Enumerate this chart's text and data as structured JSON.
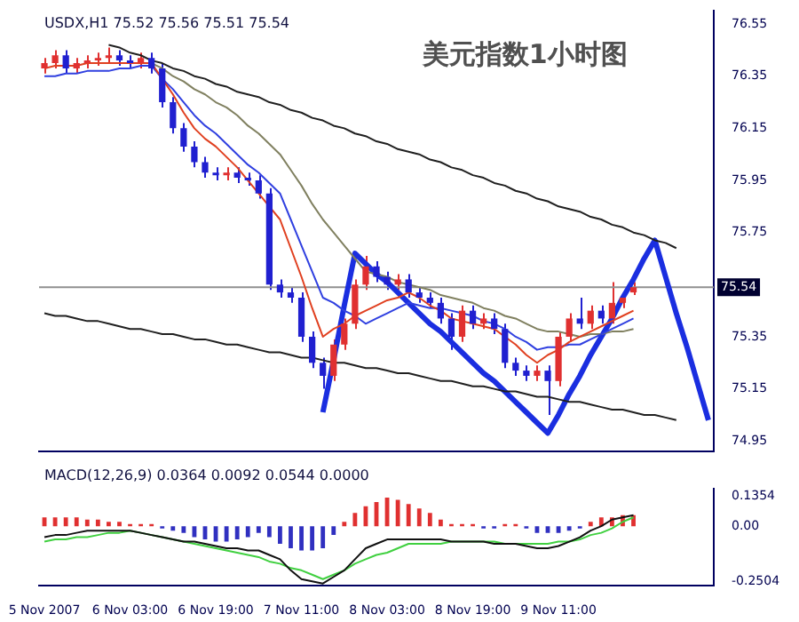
{
  "chart_data": [
    {
      "type": "candlestick",
      "title": "美元指数1小时图",
      "annotations": [
        "USDX,H1 75.52 75.56 75.51 75.54"
      ],
      "categories": [
        null,
        null,
        null,
        null,
        null,
        null,
        null,
        null,
        null,
        null,
        null,
        null,
        null,
        null,
        null,
        null,
        null,
        null,
        null,
        null,
        null,
        null,
        null,
        null,
        null,
        null,
        null,
        null,
        null,
        null,
        null,
        null,
        null,
        null,
        null,
        null,
        null,
        null,
        null,
        null,
        null,
        null,
        null,
        null,
        null,
        null,
        null,
        null,
        null,
        null,
        null,
        null,
        null,
        null,
        null,
        null,
        null,
        null,
        null,
        null,
        null,
        null,
        null
      ],
      "ohlc": [
        [
          76.38,
          76.42,
          76.36,
          76.4
        ],
        [
          76.4,
          76.45,
          76.38,
          76.43
        ],
        [
          76.43,
          76.45,
          76.36,
          76.38
        ],
        [
          76.38,
          76.42,
          76.36,
          76.4
        ],
        [
          76.4,
          76.43,
          76.38,
          76.41
        ],
        [
          76.41,
          76.44,
          76.39,
          76.42
        ],
        [
          76.42,
          76.46,
          76.4,
          76.43
        ],
        [
          76.43,
          76.45,
          76.39,
          76.41
        ],
        [
          76.41,
          76.43,
          76.38,
          76.4
        ],
        [
          76.4,
          76.44,
          76.38,
          76.42
        ],
        [
          76.42,
          76.44,
          76.36,
          76.38
        ],
        [
          76.38,
          76.4,
          76.23,
          76.25
        ],
        [
          76.25,
          76.27,
          76.13,
          76.15
        ],
        [
          76.15,
          76.17,
          76.06,
          76.08
        ],
        [
          76.08,
          76.1,
          76.0,
          76.02
        ],
        [
          76.02,
          76.04,
          75.96,
          75.98
        ],
        [
          75.98,
          76.0,
          75.95,
          75.97
        ],
        [
          75.97,
          76.0,
          75.95,
          75.98
        ],
        [
          75.98,
          76.0,
          75.94,
          75.96
        ],
        [
          75.96,
          75.98,
          75.93,
          75.95
        ],
        [
          75.95,
          75.97,
          75.88,
          75.9
        ],
        [
          75.9,
          75.92,
          75.53,
          75.55
        ],
        [
          75.55,
          75.57,
          75.5,
          75.52
        ],
        [
          75.52,
          75.54,
          75.48,
          75.5
        ],
        [
          75.5,
          75.52,
          75.33,
          75.35
        ],
        [
          75.35,
          75.37,
          75.23,
          75.25
        ],
        [
          75.25,
          75.27,
          75.15,
          75.2
        ],
        [
          75.2,
          75.34,
          75.18,
          75.32
        ],
        [
          75.32,
          75.42,
          75.3,
          75.4
        ],
        [
          75.4,
          75.57,
          75.38,
          75.55
        ],
        [
          75.55,
          75.66,
          75.53,
          75.62
        ],
        [
          75.62,
          75.64,
          75.56,
          75.58
        ],
        [
          75.58,
          75.6,
          75.53,
          75.55
        ],
        [
          75.55,
          75.59,
          75.53,
          75.57
        ],
        [
          75.57,
          75.59,
          75.5,
          75.52
        ],
        [
          75.52,
          75.54,
          75.48,
          75.5
        ],
        [
          75.5,
          75.52,
          75.46,
          75.48
        ],
        [
          75.48,
          75.5,
          75.4,
          75.42
        ],
        [
          75.42,
          75.44,
          75.3,
          75.35
        ],
        [
          75.35,
          75.47,
          75.33,
          75.45
        ],
        [
          75.45,
          75.47,
          75.38,
          75.4
        ],
        [
          75.4,
          75.44,
          75.38,
          75.42
        ],
        [
          75.42,
          75.44,
          75.36,
          75.38
        ],
        [
          75.38,
          75.4,
          75.23,
          75.25
        ],
        [
          75.25,
          75.27,
          75.2,
          75.22
        ],
        [
          75.22,
          75.24,
          75.18,
          75.2
        ],
        [
          75.2,
          75.24,
          75.18,
          75.22
        ],
        [
          75.22,
          75.24,
          75.05,
          75.18
        ],
        [
          75.18,
          75.37,
          75.16,
          75.35
        ],
        [
          75.35,
          75.44,
          75.33,
          75.42
        ],
        [
          75.42,
          75.5,
          75.38,
          75.4
        ],
        [
          75.4,
          75.47,
          75.38,
          75.45
        ],
        [
          75.45,
          75.47,
          75.4,
          75.42
        ],
        [
          75.42,
          75.56,
          75.4,
          75.48
        ],
        [
          75.48,
          75.52,
          75.46,
          75.5
        ],
        [
          75.52,
          75.56,
          75.51,
          75.54
        ],
        null,
        null,
        null,
        null,
        null,
        null,
        null
      ],
      "colors": [
        "#e03030",
        "#e03030",
        "#2020d0",
        "#e03030",
        "#e03030",
        "#e03030",
        "#e03030",
        "#2020d0",
        "#2020d0",
        "#e03030",
        "#2020d0",
        "#2020d0",
        "#2020d0",
        "#2020d0",
        "#2020d0",
        "#2020d0",
        "#2020d0",
        "#e03030",
        "#2020d0",
        "#2020d0",
        "#2020d0",
        "#2020d0",
        "#2020d0",
        "#2020d0",
        "#2020d0",
        "#2020d0",
        "#2020d0",
        "#e03030",
        "#e03030",
        "#e03030",
        "#e03030",
        "#2020d0",
        "#2020d0",
        "#e03030",
        "#2020d0",
        "#2020d0",
        "#2020d0",
        "#2020d0",
        "#2020d0",
        "#e03030",
        "#2020d0",
        "#e03030",
        "#2020d0",
        "#2020d0",
        "#2020d0",
        "#2020d0",
        "#e03030",
        "#2020d0",
        "#e03030",
        "#e03030",
        "#2020d0",
        "#e03030",
        "#2020d0",
        "#e03030",
        "#e03030",
        "#e03030",
        null,
        null,
        null,
        null,
        null,
        null,
        null
      ],
      "series": [
        {
          "type": "line",
          "color": "#e04020",
          "values": [
            76.38,
            76.39,
            76.39,
            76.39,
            76.4,
            76.4,
            76.4,
            76.4,
            76.4,
            76.4,
            76.4,
            76.34,
            76.28,
            76.21,
            76.15,
            76.11,
            76.08,
            76.04,
            76.0,
            75.95,
            75.9,
            75.85,
            75.8,
            75.69,
            75.58,
            75.46,
            75.35,
            75.38,
            75.4,
            75.43,
            75.45,
            75.47,
            75.49,
            75.5,
            75.52,
            75.5,
            75.47,
            75.45,
            75.42,
            75.41,
            75.4,
            75.39,
            75.38,
            75.35,
            75.32,
            75.28,
            75.25,
            75.28,
            75.3,
            75.33,
            75.35,
            75.37,
            75.39,
            75.41,
            75.43,
            75.45,
            null,
            null,
            null,
            null,
            null,
            null,
            null
          ]
        },
        {
          "type": "line",
          "color": "#3040e0",
          "values": [
            76.35,
            76.35,
            76.36,
            76.36,
            76.37,
            76.37,
            76.37,
            76.38,
            76.38,
            76.39,
            76.39,
            76.34,
            76.3,
            76.25,
            76.2,
            76.16,
            76.13,
            76.09,
            76.05,
            76.01,
            75.98,
            75.94,
            75.9,
            75.8,
            75.7,
            75.6,
            75.5,
            75.48,
            75.45,
            75.43,
            75.4,
            75.42,
            75.44,
            75.46,
            75.48,
            75.47,
            75.46,
            75.46,
            75.45,
            75.44,
            75.43,
            75.41,
            75.4,
            75.38,
            75.35,
            75.33,
            75.3,
            75.31,
            75.31,
            75.32,
            75.32,
            75.34,
            75.36,
            75.38,
            75.4,
            75.42,
            null,
            null,
            null,
            null,
            null,
            null,
            null
          ]
        },
        {
          "type": "line",
          "color": "#808060",
          "values": [
            null,
            null,
            null,
            null,
            null,
            null,
            null,
            null,
            null,
            null,
            76.4,
            76.38,
            76.35,
            76.33,
            76.3,
            76.28,
            76.25,
            76.23,
            76.2,
            76.16,
            76.13,
            76.09,
            76.05,
            75.99,
            75.93,
            75.86,
            75.8,
            75.75,
            75.7,
            75.65,
            75.6,
            75.59,
            75.58,
            75.56,
            75.55,
            75.54,
            75.53,
            75.51,
            75.5,
            75.49,
            75.48,
            75.46,
            75.45,
            75.43,
            75.42,
            75.4,
            75.38,
            75.37,
            75.37,
            75.36,
            75.35,
            75.36,
            75.36,
            75.37,
            75.37,
            75.38,
            null,
            null,
            null,
            null,
            null,
            null,
            null
          ]
        },
        {
          "type": "line",
          "color": "#202020",
          "values": [
            null,
            null,
            null,
            null,
            null,
            null,
            76.47,
            76.46,
            76.44,
            76.43,
            76.41,
            76.4,
            76.38,
            76.37,
            76.35,
            76.34,
            76.32,
            76.31,
            76.29,
            76.28,
            76.27,
            76.25,
            76.24,
            76.22,
            76.21,
            76.19,
            76.18,
            76.16,
            76.15,
            76.13,
            76.12,
            76.1,
            76.09,
            76.07,
            76.06,
            76.05,
            76.03,
            76.02,
            76.0,
            75.99,
            75.97,
            75.96,
            75.94,
            75.93,
            75.91,
            75.9,
            75.88,
            75.87,
            75.85,
            75.84,
            75.83,
            75.81,
            75.8,
            75.78,
            75.77,
            75.75,
            75.74,
            75.72,
            75.71,
            75.69,
            null,
            null,
            null
          ]
        },
        {
          "type": "line",
          "color": "#202020",
          "values": [
            75.44,
            75.43,
            75.43,
            75.42,
            75.41,
            75.41,
            75.4,
            75.39,
            75.38,
            75.38,
            75.37,
            75.36,
            75.36,
            75.35,
            75.34,
            75.34,
            75.33,
            75.32,
            75.32,
            75.31,
            75.3,
            75.29,
            75.29,
            75.28,
            75.27,
            75.27,
            75.26,
            75.25,
            75.25,
            75.24,
            75.23,
            75.23,
            75.22,
            75.21,
            75.21,
            75.2,
            75.19,
            75.18,
            75.18,
            75.17,
            75.16,
            75.16,
            75.15,
            75.14,
            75.14,
            75.13,
            75.12,
            75.12,
            75.11,
            75.1,
            75.1,
            75.09,
            75.08,
            75.07,
            75.07,
            75.06,
            75.05,
            75.05,
            75.04,
            75.03,
            null,
            null,
            null
          ]
        },
        {
          "type": "line",
          "color": "#1a2ee0",
          "values": [
            null,
            null,
            null,
            null,
            null,
            null,
            null,
            null,
            null,
            null,
            null,
            null,
            null,
            null,
            null,
            null,
            null,
            null,
            null,
            null,
            null,
            null,
            null,
            null,
            null,
            null,
            75.06,
            75.26,
            75.47,
            75.67,
            75.63,
            75.59,
            75.56,
            75.52,
            75.48,
            75.44,
            75.4,
            75.37,
            75.33,
            75.29,
            75.25,
            75.21,
            75.18,
            75.14,
            75.1,
            75.06,
            75.02,
            74.98,
            75.05,
            75.13,
            75.2,
            75.28,
            75.35,
            75.42,
            75.5,
            75.57,
            75.65,
            75.72,
            75.58,
            75.44,
            75.31,
            75.17,
            75.03
          ]
        }
      ],
      "ylim": [
        74.91,
        76.6
      ],
      "yticks": [
        76.55,
        76.35,
        76.15,
        75.95,
        75.75,
        75.35,
        75.15,
        74.95
      ],
      "tick_labels": "y",
      "ref_lines": [
        {
          "axis": "y",
          "value": 75.54,
          "label": "75.54",
          "color": "#909090"
        }
      ]
    },
    {
      "type": "bar",
      "annotations": [
        "MACD(12,26,9) 0.0364 0.0092 0.0544 0.0000"
      ],
      "categories": [
        "5 Nov 2007",
        null,
        null,
        null,
        null,
        null,
        null,
        null,
        "6 Nov 03:00",
        null,
        null,
        null,
        null,
        null,
        null,
        null,
        "6 Nov 19:00",
        null,
        null,
        null,
        null,
        null,
        null,
        null,
        "7 Nov 11:00",
        null,
        null,
        null,
        null,
        null,
        null,
        null,
        "8 Nov 03:00",
        null,
        null,
        null,
        null,
        null,
        null,
        null,
        "8 Nov 19:00",
        null,
        null,
        null,
        null,
        null,
        null,
        null,
        "9 Nov 11:00",
        null,
        null,
        null,
        null,
        null,
        null,
        null,
        null,
        null,
        null,
        null,
        null,
        null,
        null
      ],
      "values": [
        0.04,
        0.04,
        0.04,
        0.04,
        0.03,
        0.03,
        0.02,
        0.02,
        0.01,
        0.01,
        0.01,
        -0.01,
        -0.02,
        -0.03,
        -0.05,
        -0.06,
        -0.07,
        -0.07,
        -0.06,
        -0.05,
        -0.03,
        -0.05,
        -0.08,
        -0.1,
        -0.11,
        -0.11,
        -0.1,
        -0.04,
        0.02,
        0.06,
        0.09,
        0.11,
        0.13,
        0.12,
        0.1,
        0.08,
        0.06,
        0.03,
        0.01,
        0.01,
        0.01,
        -0.01,
        -0.01,
        0.01,
        0.01,
        -0.01,
        -0.03,
        -0.03,
        -0.03,
        -0.02,
        -0.01,
        0.02,
        0.04,
        0.04,
        0.05,
        0.05,
        null,
        null,
        null,
        null,
        null,
        null,
        null
      ],
      "colors": [
        "#e03030",
        "#e03030",
        "#e03030",
        "#e03030",
        "#e03030",
        "#e03030",
        "#e03030",
        "#e03030",
        "#e03030",
        "#e03030",
        "#e03030",
        "#3030c0",
        "#3030c0",
        "#3030c0",
        "#3030c0",
        "#3030c0",
        "#3030c0",
        "#3030c0",
        "#3030c0",
        "#3030c0",
        "#3030c0",
        "#3030c0",
        "#3030c0",
        "#3030c0",
        "#3030c0",
        "#3030c0",
        "#3030c0",
        "#3030c0",
        "#e03030",
        "#e03030",
        "#e03030",
        "#e03030",
        "#e03030",
        "#e03030",
        "#e03030",
        "#e03030",
        "#e03030",
        "#e03030",
        "#e03030",
        "#e03030",
        "#e03030",
        "#3030c0",
        "#3030c0",
        "#e03030",
        "#e03030",
        "#3030c0",
        "#3030c0",
        "#3030c0",
        "#3030c0",
        "#3030c0",
        "#3030c0",
        "#e03030",
        "#e03030",
        "#e03030",
        "#e03030",
        "#e03030",
        null,
        null,
        null,
        null,
        null,
        null,
        null
      ],
      "series": [
        {
          "type": "line",
          "color": "#101010",
          "values": [
            -0.05,
            -0.04,
            -0.04,
            -0.03,
            -0.02,
            -0.02,
            -0.02,
            -0.02,
            -0.02,
            -0.03,
            -0.04,
            -0.05,
            -0.06,
            -0.07,
            -0.07,
            -0.08,
            -0.09,
            -0.1,
            -0.1,
            -0.11,
            -0.11,
            -0.13,
            -0.15,
            -0.2,
            -0.24,
            -0.25,
            -0.26,
            -0.23,
            -0.2,
            -0.15,
            -0.1,
            -0.08,
            -0.06,
            -0.06,
            -0.06,
            -0.06,
            -0.06,
            -0.06,
            -0.07,
            -0.07,
            -0.07,
            -0.07,
            -0.08,
            -0.08,
            -0.08,
            -0.09,
            -0.1,
            -0.1,
            -0.09,
            -0.07,
            -0.05,
            -0.02,
            0.0,
            0.03,
            0.04,
            0.05,
            null,
            null,
            null,
            null,
            null,
            null,
            null
          ]
        },
        {
          "type": "line",
          "color": "#40d040",
          "values": [
            -0.07,
            -0.06,
            -0.06,
            -0.05,
            -0.05,
            -0.04,
            -0.03,
            -0.03,
            -0.02,
            -0.03,
            -0.04,
            -0.05,
            -0.06,
            -0.07,
            -0.08,
            -0.09,
            -0.1,
            -0.11,
            -0.12,
            -0.13,
            -0.14,
            -0.16,
            -0.17,
            -0.19,
            -0.2,
            -0.22,
            -0.24,
            -0.22,
            -0.2,
            -0.17,
            -0.15,
            -0.13,
            -0.12,
            -0.1,
            -0.08,
            -0.08,
            -0.08,
            -0.08,
            -0.07,
            -0.07,
            -0.07,
            -0.07,
            -0.07,
            -0.08,
            -0.08,
            -0.08,
            -0.08,
            -0.08,
            -0.07,
            -0.07,
            -0.06,
            -0.04,
            -0.03,
            -0.01,
            0.02,
            0.04,
            null,
            null,
            null,
            null,
            null,
            null,
            null
          ]
        }
      ],
      "ylim": [
        -0.27,
        0.17
      ],
      "yticks": [
        0.1354,
        {
          "value": 0,
          "label": "0.00"
        },
        -0.2504
      ]
    }
  ]
}
